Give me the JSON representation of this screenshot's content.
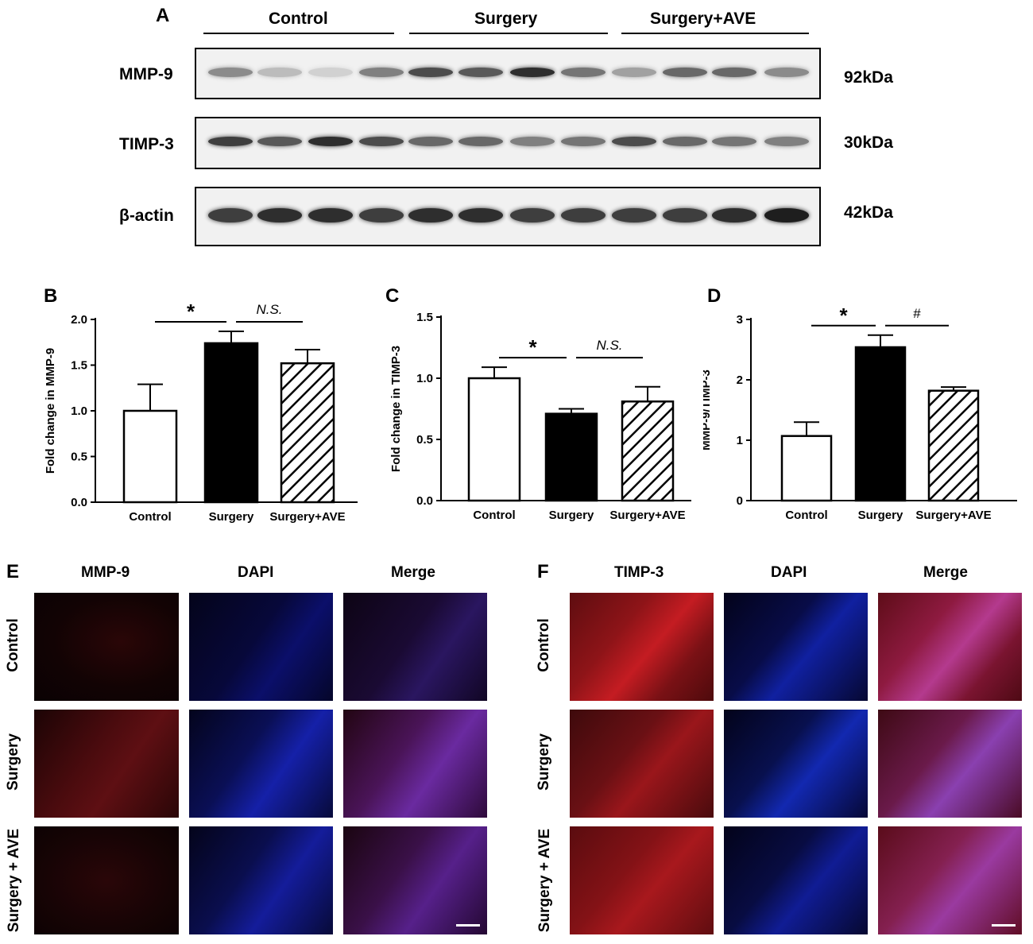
{
  "panel_a": {
    "letter": "A",
    "groups": [
      "Control",
      "Surgery",
      "Surgery+AVE"
    ],
    "rows": [
      {
        "label": "MMP-9",
        "size": "92kDa",
        "intensity": [
          0.55,
          0.3,
          0.15,
          0.6,
          0.8,
          0.75,
          0.9,
          0.65,
          0.45,
          0.7,
          0.7,
          0.55
        ]
      },
      {
        "label": "TIMP-3",
        "size": "30kDa",
        "intensity": [
          0.85,
          0.75,
          0.9,
          0.8,
          0.7,
          0.7,
          0.6,
          0.65,
          0.8,
          0.7,
          0.65,
          0.6
        ]
      },
      {
        "label": "β-actin",
        "size": "42kDa",
        "intensity": [
          0.85,
          0.9,
          0.9,
          0.85,
          0.9,
          0.9,
          0.85,
          0.85,
          0.85,
          0.85,
          0.9,
          0.95
        ]
      }
    ]
  },
  "chart_data": [
    {
      "panel": "B",
      "type": "bar",
      "categories": [
        "Control",
        "Surgery",
        "Surgery+AVE"
      ],
      "values": [
        1.0,
        1.74,
        1.52
      ],
      "errors": [
        0.29,
        0.13,
        0.15
      ],
      "fills": [
        "white",
        "black",
        "hatched"
      ],
      "ylabel": "Fold change in MMP-9",
      "ylim": [
        0,
        2.0
      ],
      "yticks": [
        "0.0",
        "0.5",
        "1.0",
        "1.5",
        "2.0"
      ],
      "annotations": [
        {
          "from": 0,
          "to": 1,
          "text": "*"
        },
        {
          "from": 1,
          "to": 2,
          "text": "N.S."
        }
      ]
    },
    {
      "panel": "C",
      "type": "bar",
      "categories": [
        "Control",
        "Surgery",
        "Surgery+AVE"
      ],
      "values": [
        1.0,
        0.71,
        0.81
      ],
      "errors": [
        0.09,
        0.04,
        0.12
      ],
      "fills": [
        "white",
        "black",
        "hatched"
      ],
      "ylabel": "Fold change in TIMP-3",
      "ylim": [
        0,
        1.5
      ],
      "yticks": [
        "0.0",
        "0.5",
        "1.0",
        "1.5"
      ],
      "annotations": [
        {
          "from": 0,
          "to": 1,
          "text": "*"
        },
        {
          "from": 1,
          "to": 2,
          "text": "N.S."
        }
      ]
    },
    {
      "panel": "D",
      "type": "bar",
      "categories": [
        "Control",
        "Surgery",
        "Surgery+AVE"
      ],
      "values": [
        1.07,
        2.54,
        1.82
      ],
      "errors": [
        0.23,
        0.2,
        0.06
      ],
      "fills": [
        "white",
        "black",
        "hatched"
      ],
      "ylabel": "MMP-9/TIMP-3",
      "ylim": [
        0,
        3
      ],
      "yticks": [
        "0",
        "1",
        "2",
        "3"
      ],
      "annotations": [
        {
          "from": 0,
          "to": 1,
          "text": "*"
        },
        {
          "from": 1,
          "to": 2,
          "text": "#"
        }
      ]
    }
  ],
  "panel_e": {
    "letter": "E",
    "columns": [
      "MMP-9",
      "DAPI",
      "Merge"
    ],
    "rows": [
      "Control",
      "Surgery",
      "Surgery + AVE"
    ]
  },
  "panel_f": {
    "letter": "F",
    "columns": [
      "TIMP-3",
      "DAPI",
      "Merge"
    ],
    "rows": [
      "Control",
      "Surgery",
      "Surgery + AVE"
    ]
  },
  "colors": {
    "red_channel": "#c0161c",
    "blue_channel": "#1a1fd0",
    "background_dark": "#06030a"
  }
}
